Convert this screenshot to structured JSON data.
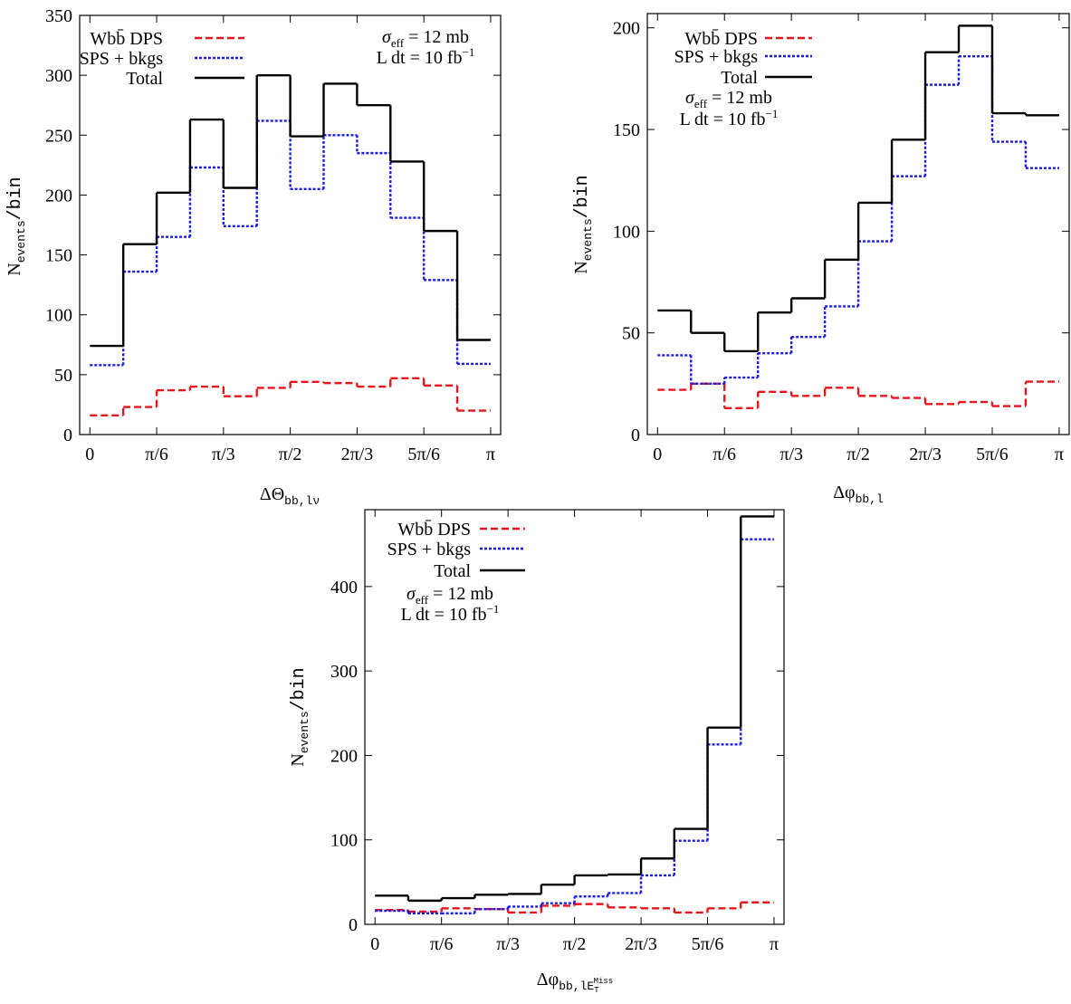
{
  "chart_data": [
    {
      "type": "histogram",
      "bins": [
        0,
        0.2618,
        0.5236,
        0.7854,
        1.0472,
        1.309,
        1.5708,
        1.8326,
        2.0944,
        2.3562,
        2.618,
        2.8798,
        3.1416
      ],
      "series": [
        {
          "name": "Wbb̄ DPS",
          "color": "#e8141c",
          "linestyle": "dashed",
          "values": [
            16,
            23,
            37,
            40,
            32,
            39,
            44,
            43,
            40,
            47,
            41,
            20
          ]
        },
        {
          "name": "SPS + bkgs",
          "color": "#1a1ae6",
          "linestyle": "dotted",
          "values": [
            58,
            136,
            165,
            223,
            174,
            262,
            205,
            250,
            235,
            181,
            129,
            59
          ]
        },
        {
          "name": "Total",
          "color": "#000000",
          "linestyle": "solid",
          "values": [
            74,
            159,
            202,
            263,
            206,
            300,
            249,
            293,
            275,
            228,
            170,
            79
          ]
        }
      ],
      "annotations": [
        [
          "σ",
          "eff",
          " = 12 mb"
        ],
        [
          "L dt = 10 fb",
          "−1"
        ]
      ],
      "x_label": [
        "ΔΘ",
        "bb,lν"
      ],
      "y_label": [
        "N",
        "events",
        "/bin"
      ],
      "xlim": [
        -0.08,
        3.22
      ],
      "ylim": [
        0,
        350
      ],
      "xticks": [
        {
          "value": 0,
          "label": "0"
        },
        {
          "value": 0.5236,
          "label": "π/6"
        },
        {
          "value": 1.0472,
          "label": "π/3"
        },
        {
          "value": 1.5708,
          "label": "π/2"
        },
        {
          "value": 2.0944,
          "label": "2π/3"
        },
        {
          "value": 2.618,
          "label": "5π/6"
        },
        {
          "value": 3.1416,
          "label": "π"
        }
      ],
      "yticks": [
        0,
        50,
        100,
        150,
        200,
        250,
        300,
        350
      ]
    },
    {
      "type": "histogram",
      "bins": [
        0,
        0.2618,
        0.5236,
        0.7854,
        1.0472,
        1.309,
        1.5708,
        1.8326,
        2.0944,
        2.3562,
        2.618,
        2.8798,
        3.1416
      ],
      "series": [
        {
          "name": "Wbb̄ DPS",
          "color": "#e8141c",
          "linestyle": "dashed",
          "values": [
            22,
            25,
            13,
            21,
            19,
            23,
            19,
            18,
            15,
            16,
            14,
            26
          ]
        },
        {
          "name": "SPS + bkgs",
          "color": "#1a1ae6",
          "linestyle": "dotted",
          "values": [
            39,
            25,
            28,
            40,
            48,
            63,
            95,
            127,
            172,
            186,
            144,
            131
          ]
        },
        {
          "name": "Total",
          "color": "#000000",
          "linestyle": "solid",
          "values": [
            61,
            50,
            41,
            60,
            67,
            86,
            114,
            145,
            188,
            201,
            158,
            157
          ]
        }
      ],
      "annotations": [
        [
          "σ",
          "eff",
          " = 12 mb"
        ],
        [
          "L dt = 10 fb",
          "−1"
        ]
      ],
      "x_label": [
        "Δφ",
        "bb,l"
      ],
      "y_label": [
        "N",
        "events",
        "/bin"
      ],
      "xlim": [
        -0.08,
        3.22
      ],
      "ylim": [
        0,
        207
      ],
      "xticks": [
        {
          "value": 0,
          "label": "0"
        },
        {
          "value": 0.5236,
          "label": "π/6"
        },
        {
          "value": 1.0472,
          "label": "π/3"
        },
        {
          "value": 1.5708,
          "label": "π/2"
        },
        {
          "value": 2.0944,
          "label": "2π/3"
        },
        {
          "value": 2.618,
          "label": "5π/6"
        },
        {
          "value": 3.1416,
          "label": "π"
        }
      ],
      "yticks": [
        0,
        50,
        100,
        150,
        200
      ]
    },
    {
      "type": "histogram",
      "bins": [
        0,
        0.2618,
        0.5236,
        0.7854,
        1.0472,
        1.309,
        1.5708,
        1.8326,
        2.0944,
        2.3562,
        2.618,
        2.8798,
        3.1416
      ],
      "series": [
        {
          "name": "Wbb̄ DPS",
          "color": "#e8141c",
          "linestyle": "dashed",
          "values": [
            17,
            15,
            19,
            18,
            14,
            22,
            24,
            20,
            19,
            14,
            19,
            26
          ]
        },
        {
          "name": "SPS + bkgs",
          "color": "#1a1ae6",
          "linestyle": "dotted",
          "values": [
            16,
            13,
            13,
            18,
            21,
            25,
            33,
            37,
            58,
            99,
            213,
            456
          ]
        },
        {
          "name": "Total",
          "color": "#000000",
          "linestyle": "solid",
          "values": [
            34,
            28,
            31,
            35,
            36,
            47,
            58,
            59,
            78,
            113,
            233,
            483
          ]
        }
      ],
      "annotations": [
        [
          "σ",
          "eff",
          " = 12 mb"
        ],
        [
          "L dt = 10 fb",
          "−1"
        ]
      ],
      "x_label": [
        "Δφ",
        "bb,lE",
        "T",
        "Miss"
      ],
      "y_label": [
        "N",
        "events",
        "/bin"
      ],
      "xlim": [
        -0.08,
        3.22
      ],
      "ylim": [
        0,
        491
      ],
      "xticks": [
        {
          "value": 0,
          "label": "0"
        },
        {
          "value": 0.5236,
          "label": "π/6"
        },
        {
          "value": 1.0472,
          "label": "π/3"
        },
        {
          "value": 1.5708,
          "label": "π/2"
        },
        {
          "value": 2.0944,
          "label": "2π/3"
        },
        {
          "value": 2.618,
          "label": "5π/6"
        },
        {
          "value": 3.1416,
          "label": "π"
        }
      ],
      "yticks": [
        0,
        100,
        200,
        300,
        400
      ]
    }
  ]
}
